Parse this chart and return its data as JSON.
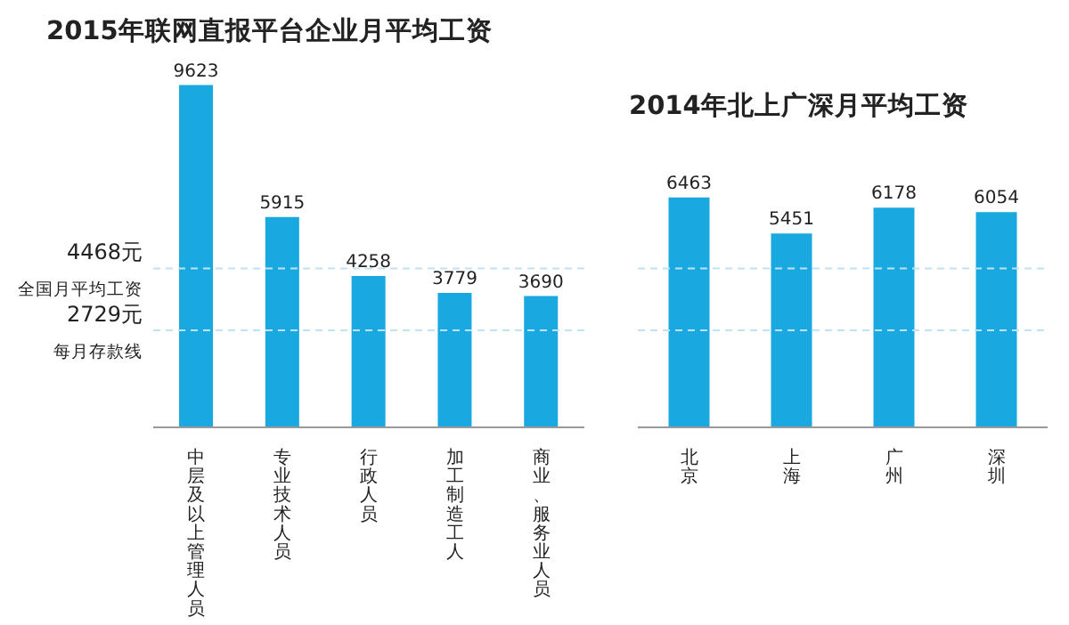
{
  "chart_data": [
    {
      "type": "bar",
      "title": "2015年联网直报平台企业月平均工资",
      "categories": [
        "中层及以上管理人员",
        "专业技术人员",
        "行政人员",
        "加工制造工人",
        "商业、服务业人员"
      ],
      "values": [
        9623,
        5915,
        4258,
        3779,
        3690
      ],
      "color": "#1aa8e0",
      "data_labels": true,
      "ref_lines": [
        {
          "axis": "y",
          "value": 4468,
          "label": "4468元",
          "color": "#bfe3f2",
          "line_style": "dashed"
        },
        {
          "axis": "y",
          "value": 2729,
          "label": "2729元",
          "color": "#bfe3f2",
          "line_style": "dashed"
        }
      ],
      "annotations": [
        "全国月平均工资",
        "每月存款线"
      ]
    },
    {
      "type": "bar",
      "title": "2014年北上广深月平均工资",
      "categories": [
        "北京",
        "上海",
        "广州",
        "深圳"
      ],
      "values": [
        6463,
        5451,
        6178,
        6054
      ],
      "color": "#1aa8e0",
      "data_labels": true,
      "ref_lines": [
        {
          "axis": "y",
          "value": 4468,
          "color": "#bfe3f2",
          "line_style": "dashed"
        },
        {
          "axis": "y",
          "value": 2729,
          "color": "#bfe3f2",
          "line_style": "dashed"
        }
      ]
    }
  ]
}
